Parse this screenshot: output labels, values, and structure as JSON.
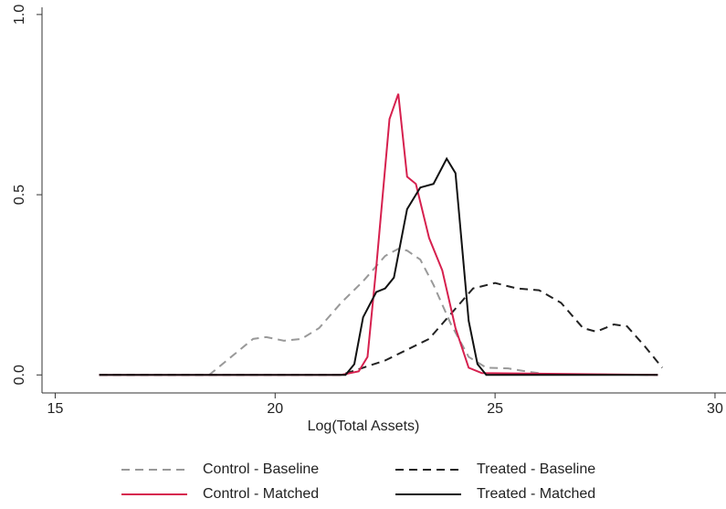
{
  "chart_data": {
    "type": "line",
    "x_label": "Log(Total Assets)",
    "xlim": [
      14.7,
      30.25
    ],
    "ylim": [
      -0.05,
      1.02
    ],
    "xticks": [
      15,
      20,
      25,
      30
    ],
    "yticks": [
      {
        "value": 0,
        "label": "0.0"
      },
      0.5,
      {
        "value": 1,
        "label": "1.0"
      }
    ],
    "legend": "bottom",
    "series": [
      {
        "name": "Control - Baseline",
        "color": "#999999",
        "dash": "dashed",
        "x": [
          16,
          18.5,
          19,
          19.5,
          19.8,
          20.2,
          20.6,
          21,
          21.5,
          22,
          22.5,
          22.8,
          23,
          23.3,
          23.6,
          24,
          24.4,
          24.8,
          25.3,
          25.8,
          26.2,
          28.7
        ],
        "values": [
          0,
          0,
          0.05,
          0.1,
          0.105,
          0.095,
          0.1,
          0.13,
          0.2,
          0.26,
          0.33,
          0.35,
          0.345,
          0.32,
          0.25,
          0.14,
          0.05,
          0.02,
          0.018,
          0.008,
          0.002,
          0
        ]
      },
      {
        "name": "Treated - Baseline",
        "color": "#222222",
        "dash": "dashed",
        "x": [
          16,
          21.5,
          22,
          22.5,
          23,
          23.5,
          24,
          24.5,
          25,
          25.5,
          26,
          26.5,
          27,
          27.3,
          27.7,
          28,
          28.4,
          28.8
        ],
        "values": [
          0,
          0,
          0.02,
          0.04,
          0.07,
          0.1,
          0.17,
          0.24,
          0.255,
          0.24,
          0.235,
          0.2,
          0.13,
          0.12,
          0.14,
          0.135,
          0.08,
          0.02
        ]
      },
      {
        "name": "Control - Matched",
        "color": "#d6204e",
        "dash": "solid",
        "x": [
          16,
          21.5,
          21.9,
          22.1,
          22.3,
          22.6,
          22.8,
          23,
          23.2,
          23.5,
          23.8,
          24.1,
          24.4,
          24.7,
          28.7
        ],
        "values": [
          0,
          0,
          0.01,
          0.05,
          0.3,
          0.71,
          0.78,
          0.55,
          0.53,
          0.38,
          0.29,
          0.13,
          0.02,
          0.005,
          0
        ]
      },
      {
        "name": "Treated - Matched",
        "color": "#111111",
        "dash": "solid",
        "x": [
          16,
          21.6,
          21.8,
          22,
          22.3,
          22.5,
          22.7,
          23,
          23.3,
          23.6,
          23.9,
          24.1,
          24.4,
          24.6,
          24.8,
          28.7
        ],
        "values": [
          0,
          0,
          0.03,
          0.16,
          0.23,
          0.24,
          0.27,
          0.46,
          0.52,
          0.53,
          0.6,
          0.56,
          0.15,
          0.03,
          0,
          0
        ]
      }
    ]
  }
}
